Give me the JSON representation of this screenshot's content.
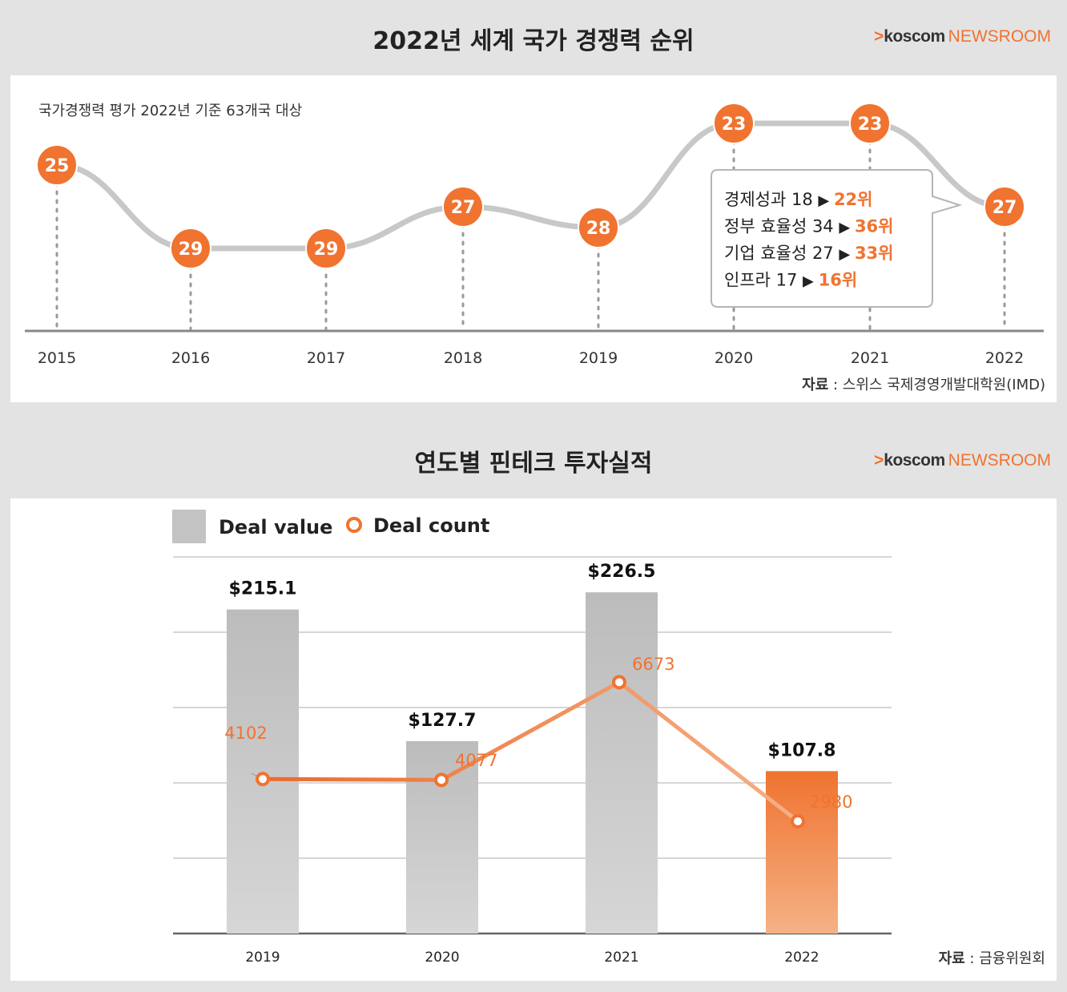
{
  "top": {
    "title": "2022년 세계 국가 경쟁력 순위",
    "brand": {
      "prefix": ">",
      "name": "koscom",
      "suffix": "NEWSROOM"
    },
    "note": "국가경쟁력 평가 2022년 기준 63개국 대상",
    "source_label": "자료",
    "source_text": " : 스위스 국제경영개발대학원(IMD)",
    "callout": {
      "rows": [
        {
          "label": "경제성과 18",
          "arrow": "▶",
          "value": "22위"
        },
        {
          "label": "정부 효율성 34",
          "arrow": "▶",
          "value": "36위"
        },
        {
          "label": "기업 효율성 27",
          "arrow": "▶",
          "value": "33위"
        },
        {
          "label": "인프라 17",
          "arrow": "▶",
          "value": "16위"
        }
      ]
    }
  },
  "bottom": {
    "title": "연도별 핀테크 투자실적",
    "brand": {
      "prefix": ">",
      "name": "koscom",
      "suffix": "NEWSROOM"
    },
    "legend": {
      "bar": "Deal value",
      "line": "Deal count"
    },
    "source_label": "자료",
    "source_text": " : 금융위원회"
  },
  "colors": {
    "accent": "#f07330",
    "bar_gray": "#c3c3c3",
    "line_gray": "#c8c8c8",
    "bg": "#e3e3e3"
  },
  "chart_data": [
    {
      "type": "line",
      "title": "2022년 세계 국가 경쟁력 순위",
      "x": [
        "2015",
        "2016",
        "2017",
        "2018",
        "2019",
        "2020",
        "2021",
        "2022"
      ],
      "series": [
        {
          "values": [
            25,
            29,
            29,
            27,
            28,
            23,
            23,
            27
          ]
        }
      ],
      "y_inverted": true,
      "ylim": [
        32,
        22
      ],
      "grid": false
    },
    {
      "type": "bar",
      "title": "연도별 핀테크 투자실적",
      "categories": [
        "2019",
        "2020",
        "2021",
        "2022"
      ],
      "series": [
        {
          "name": "Deal value",
          "type": "bar",
          "values": [
            215.1,
            127.7,
            226.5,
            107.8
          ],
          "labels": [
            "$215.1",
            "$127.7",
            "$226.5",
            "$107.8"
          ]
        },
        {
          "name": "Deal count",
          "type": "line",
          "values": [
            4102,
            4077,
            6673,
            2980
          ]
        }
      ],
      "ylim_value": [
        0,
        250
      ],
      "ylim_count": [
        0,
        10000
      ],
      "grid": true,
      "legend": "top-left"
    }
  ]
}
